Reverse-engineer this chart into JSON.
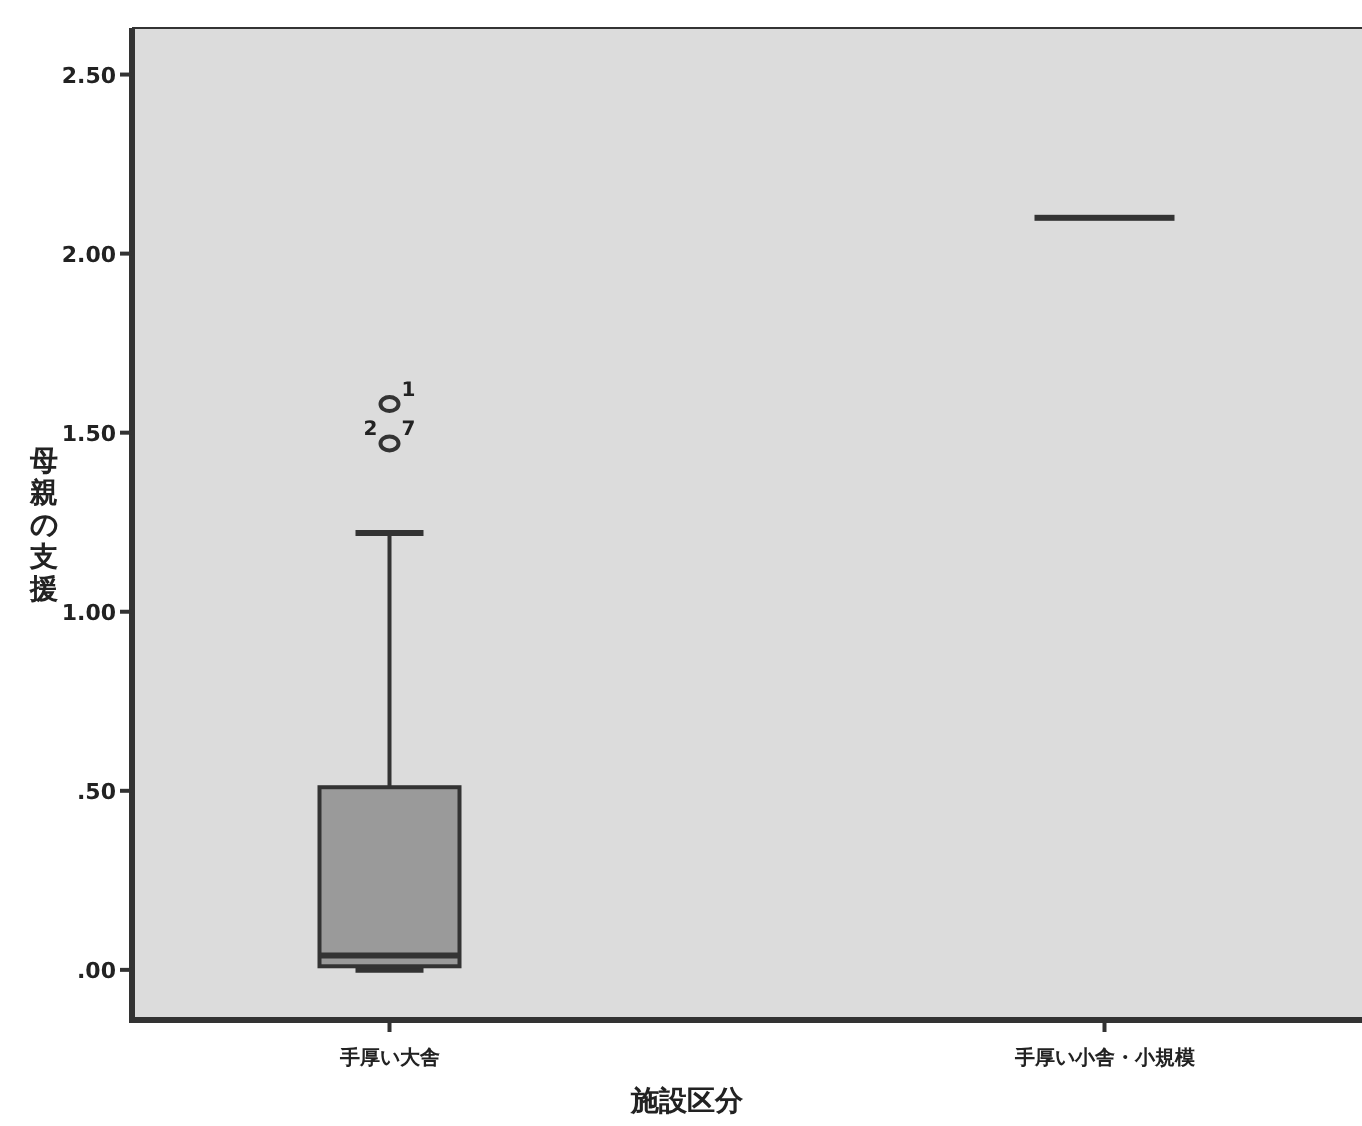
{
  "chart_data": {
    "type": "box",
    "xlabel": "施設区分",
    "ylabel": "母親の支援",
    "categories": [
      "手厚い大舎",
      "手厚い小舎・小規模"
    ],
    "boxes": [
      {
        "low": 0.0,
        "q1": 0.01,
        "median": 0.04,
        "q3": 0.51,
        "high": 1.22,
        "outliers": [
          1.58,
          1.47
        ]
      },
      {
        "low": 2.1,
        "q1": 2.1,
        "median": 2.1,
        "q3": 2.1,
        "high": 2.1
      }
    ],
    "colors": [
      "#9a9a9a",
      "#333333"
    ],
    "ylim": [
      -0.14,
      2.63
    ],
    "yticks": [
      {
        "value": 0,
        "label": ".00"
      },
      {
        "value": 0.5,
        "label": ".50"
      },
      {
        "value": 1,
        "label": "1.00"
      },
      {
        "value": 1.5,
        "label": "1.50"
      },
      {
        "value": 2,
        "label": "2.00"
      },
      {
        "value": 2.5,
        "label": "2.50"
      }
    ],
    "grid": false,
    "annotations": [
      "1",
      "2",
      "7"
    ]
  }
}
